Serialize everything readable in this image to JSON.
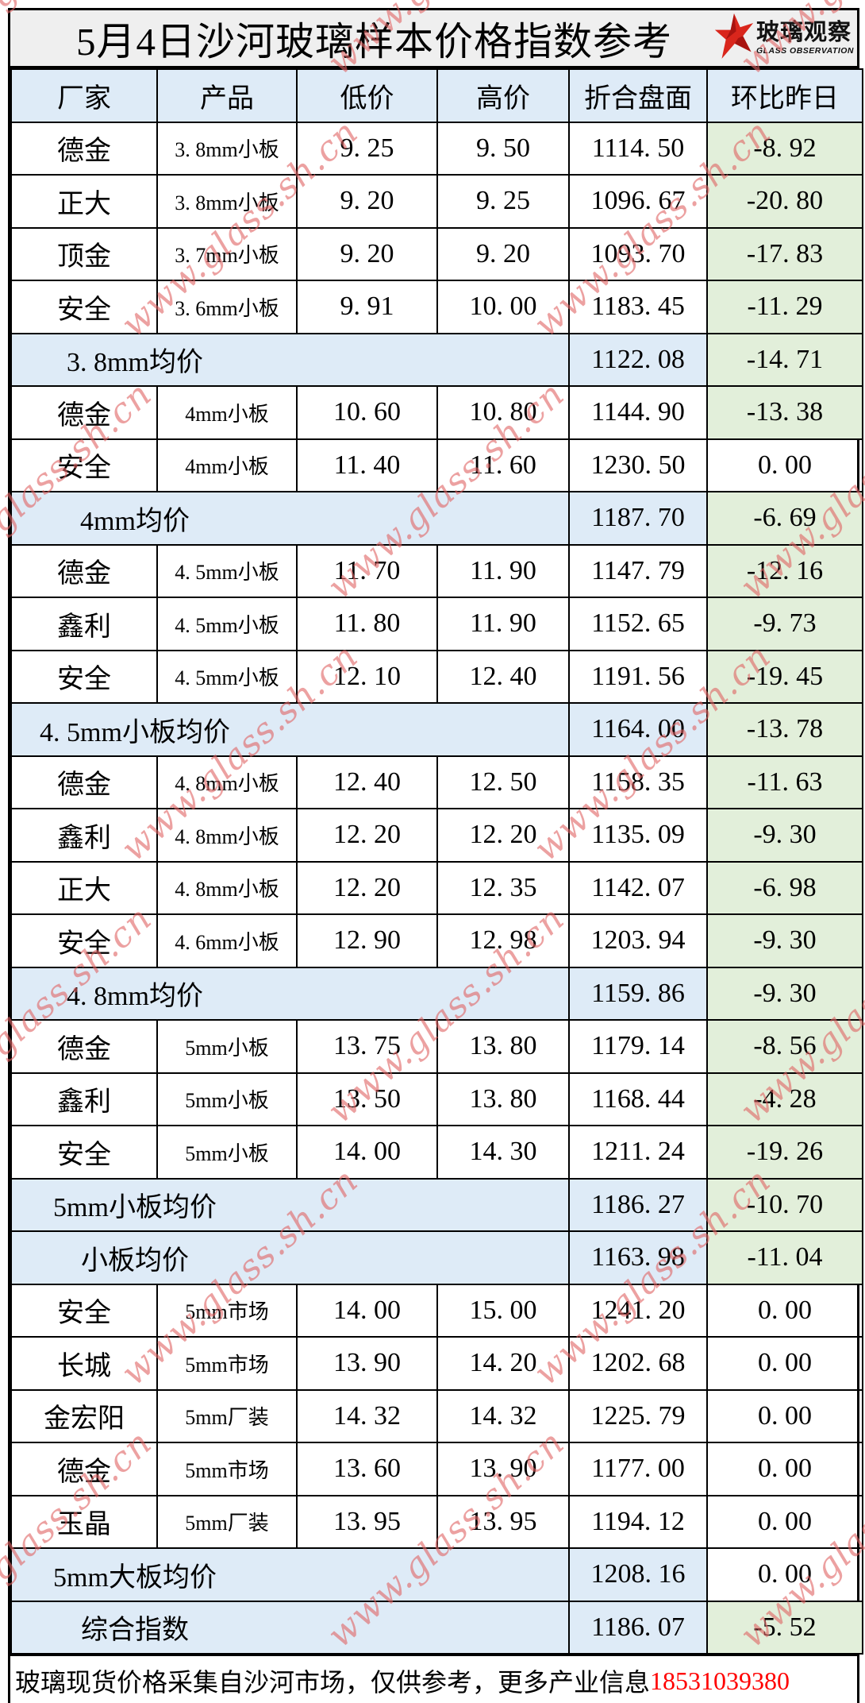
{
  "title": "5月4日沙河玻璃样本价格指数参考",
  "logo": {
    "brand": "玻璃观察",
    "subtitle": "GLASS OBSERVATION"
  },
  "watermark": {
    "text": "www.glass.sh.cn"
  },
  "table": {
    "headers": [
      "厂家",
      "产品",
      "低价",
      "高价",
      "折合盘面",
      "环比昨日"
    ],
    "rows": [
      {
        "type": "data",
        "factory": "德金",
        "product": "3.8mm小板",
        "low": "9.25",
        "high": "9.50",
        "index": "1114.50",
        "change": "-8.92"
      },
      {
        "type": "data",
        "factory": "正大",
        "product": "3.8mm小板",
        "low": "9.20",
        "high": "9.25",
        "index": "1096.67",
        "change": "-20.80"
      },
      {
        "type": "data",
        "factory": "顶金",
        "product": "3.7mm小板",
        "low": "9.20",
        "high": "9.20",
        "index": "1093.70",
        "change": "-17.83"
      },
      {
        "type": "data",
        "factory": "安全",
        "product": "3.6mm小板",
        "low": "9.91",
        "high": "10.00",
        "index": "1183.45",
        "change": "-11.29"
      },
      {
        "type": "summary",
        "label": "3.8mm均价",
        "index": "1122.08",
        "change": "-14.71"
      },
      {
        "type": "data",
        "factory": "德金",
        "product": "4mm小板",
        "low": "10.60",
        "high": "10.80",
        "index": "1144.90",
        "change": "-13.38"
      },
      {
        "type": "data",
        "factory": "安全",
        "product": "4mm小板",
        "low": "11.40",
        "high": "11.60",
        "index": "1230.50",
        "change": "0.00"
      },
      {
        "type": "summary",
        "label": "4mm均价",
        "index": "1187.70",
        "change": "-6.69"
      },
      {
        "type": "data",
        "factory": "德金",
        "product": "4.5mm小板",
        "low": "11.70",
        "high": "11.90",
        "index": "1147.79",
        "change": "-12.16"
      },
      {
        "type": "data",
        "factory": "鑫利",
        "product": "4.5mm小板",
        "low": "11.80",
        "high": "11.90",
        "index": "1152.65",
        "change": "-9.73"
      },
      {
        "type": "data",
        "factory": "安全",
        "product": "4.5mm小板",
        "low": "12.10",
        "high": "12.40",
        "index": "1191.56",
        "change": "-19.45"
      },
      {
        "type": "summary",
        "label": "4.5mm小板均价",
        "index": "1164.00",
        "change": "-13.78"
      },
      {
        "type": "data",
        "factory": "德金",
        "product": "4.8mm小板",
        "low": "12.40",
        "high": "12.50",
        "index": "1158.35",
        "change": "-11.63"
      },
      {
        "type": "data",
        "factory": "鑫利",
        "product": "4.8mm小板",
        "low": "12.20",
        "high": "12.20",
        "index": "1135.09",
        "change": "-9.30"
      },
      {
        "type": "data",
        "factory": "正大",
        "product": "4.8mm小板",
        "low": "12.20",
        "high": "12.35",
        "index": "1142.07",
        "change": "-6.98"
      },
      {
        "type": "data",
        "factory": "安全",
        "product": "4.6mm小板",
        "low": "12.90",
        "high": "12.98",
        "index": "1203.94",
        "change": "-9.30"
      },
      {
        "type": "summary",
        "label": "4.8mm均价",
        "index": "1159.86",
        "change": "-9.30"
      },
      {
        "type": "data",
        "factory": "德金",
        "product": "5mm小板",
        "low": "13.75",
        "high": "13.80",
        "index": "1179.14",
        "change": "-8.56"
      },
      {
        "type": "data",
        "factory": "鑫利",
        "product": "5mm小板",
        "low": "13.50",
        "high": "13.80",
        "index": "1168.44",
        "change": "-4.28"
      },
      {
        "type": "data",
        "factory": "安全",
        "product": "5mm小板",
        "low": "14.00",
        "high": "14.30",
        "index": "1211.24",
        "change": "-19.26"
      },
      {
        "type": "summary",
        "label": "5mm小板均价",
        "index": "1186.27",
        "change": "-10.70"
      },
      {
        "type": "summary",
        "label": "小板均价",
        "index": "1163.98",
        "change": "-11.04"
      },
      {
        "type": "data",
        "factory": "安全",
        "product": "5mm市场",
        "low": "14.00",
        "high": "15.00",
        "index": "1241.20",
        "change": "0.00"
      },
      {
        "type": "data",
        "factory": "长城",
        "product": "5mm市场",
        "low": "13.90",
        "high": "14.20",
        "index": "1202.68",
        "change": "0.00"
      },
      {
        "type": "data",
        "factory": "金宏阳",
        "product": "5mm厂装",
        "low": "14.32",
        "high": "14.32",
        "index": "1225.79",
        "change": "0.00"
      },
      {
        "type": "data",
        "factory": "德金",
        "product": "5mm市场",
        "low": "13.60",
        "high": "13.90",
        "index": "1177.00",
        "change": "0.00"
      },
      {
        "type": "data",
        "factory": "玉晶",
        "product": "5mm厂装",
        "low": "13.95",
        "high": "13.95",
        "index": "1194.12",
        "change": "0.00"
      },
      {
        "type": "summary",
        "label": "5mm大板均价",
        "index": "1208.16",
        "change": "0.00"
      },
      {
        "type": "summary",
        "label": "综合指数",
        "index": "1186.07",
        "change": "-5.52"
      }
    ]
  },
  "footer": {
    "note": "玻璃现货价格采集自沙河市场，仅供参考，更多产业信息",
    "phone": "18531039380"
  },
  "colors": {
    "header_bg": "#DEEBF7",
    "summary_bg": "#DEEBF7",
    "negative_bg": "#E2EFDA",
    "title_bg": "#EFEFEF",
    "watermark": "#DF6262",
    "phone_red": "#FF0000",
    "logo_red": "#D9261C",
    "border": "#000000"
  }
}
